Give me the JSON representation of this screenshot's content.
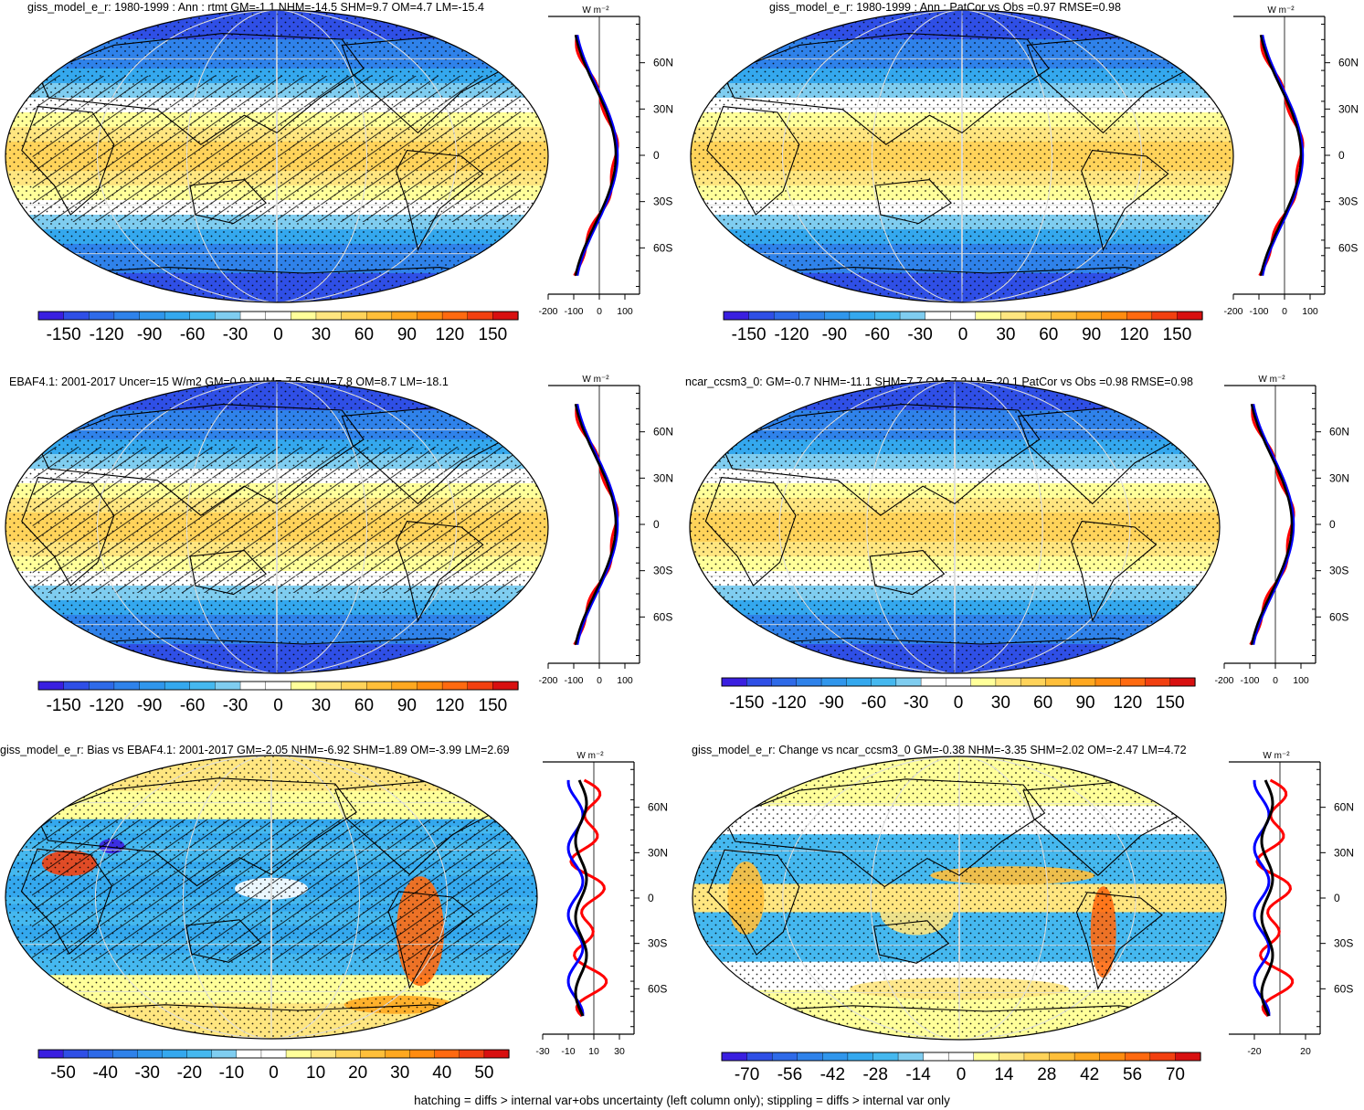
{
  "footnote": "hatching = diffs > internal var+obs uncertainty (left column only); stippling = diffs > internal var only",
  "colors": {
    "neg": [
      "#3a1fe0",
      "#2f4fe6",
      "#2e6ae8",
      "#2f82ea",
      "#3096ec",
      "#34a8ee",
      "#45b8ef",
      "#7fcdf0"
    ],
    "pos": [
      "#ffff9a",
      "#ffe680",
      "#ffd35a",
      "#ffbf3a",
      "#ffa820",
      "#ff8c10",
      "#ff6a10",
      "#f24010",
      "#d81010"
    ],
    "zero": "#ffffff",
    "model_line": "#ff0000",
    "obs_line": "#000000",
    "ref_line": "#0000ff"
  },
  "panels": [
    {
      "title": "giss_model_e_r: 1980-1999 : Ann : rtmt GM=-1.1 NHM=-14.5 SHM=9.7 OM=4.7 LM=-15.4",
      "field": "abs",
      "hatch": true,
      "stipple": true,
      "colorbar_labels": [
        "-150",
        "-120",
        "-90",
        "-60",
        "-30",
        "0",
        "30",
        "60",
        "90",
        "120",
        "150"
      ],
      "unit": "W m⁻²",
      "lat_labels": [
        "60N",
        "30N",
        "0",
        "30S",
        "60S"
      ],
      "x_labels": [
        "-200",
        "-100",
        "0",
        "100"
      ],
      "profile": "abs1"
    },
    {
      "title": "giss_model_e_r: 1980-1999 : Ann : PatCor vs Obs =0.97 RMSE=0.98",
      "field": "abs",
      "hatch": false,
      "stipple": true,
      "colorbar_labels": [
        "-150",
        "-120",
        "-90",
        "-60",
        "-30",
        "0",
        "30",
        "60",
        "90",
        "120",
        "150"
      ],
      "unit": "W m⁻²",
      "lat_labels": [
        "60N",
        "30N",
        "0",
        "30S",
        "60S"
      ],
      "x_labels": [
        "-200",
        "-100",
        "0",
        "100"
      ],
      "profile": "abs2"
    },
    {
      "title": "EBAF4.1: 2001-2017 Uncer=15 W/m2 GM=0.9 NHM=-7.5 SHM=7.8 OM=8.7 LM=-18.1",
      "field": "abs",
      "hatch": true,
      "stipple": true,
      "colorbar_labels": [
        "-150",
        "-120",
        "-90",
        "-60",
        "-30",
        "0",
        "30",
        "60",
        "90",
        "120",
        "150"
      ],
      "unit": "W m⁻²",
      "lat_labels": [
        "60N",
        "30N",
        "0",
        "30S",
        "60S"
      ],
      "x_labels": [
        "-200",
        "-100",
        "0",
        "100"
      ],
      "profile": "abs3"
    },
    {
      "title": "ncar_ccsm3_0: GM=-0.7 NHM=-11.1 SHM=7.7 OM=7.2 LM=-20.1 PatCor vs Obs =0.98 RMSE=0.98",
      "field": "abs",
      "hatch": false,
      "stipple": true,
      "colorbar_labels": [
        "-150",
        "-120",
        "-90",
        "-60",
        "-30",
        "0",
        "30",
        "60",
        "90",
        "120",
        "150"
      ],
      "unit": "W m⁻²",
      "lat_labels": [
        "60N",
        "30N",
        "0",
        "30S",
        "60S"
      ],
      "x_labels": [
        "-200",
        "-100",
        "0",
        "100"
      ],
      "profile": "abs4"
    },
    {
      "title": "giss_model_e_r: Bias vs EBAF4.1: 2001-2017 GM=-2.05 NHM=-6.92 SHM=1.89 OM=-3.99 LM=2.69",
      "field": "bias",
      "hatch": true,
      "stipple": true,
      "colorbar_labels": [
        "-50",
        "-40",
        "-30",
        "-20",
        "-10",
        "0",
        "10",
        "20",
        "30",
        "40",
        "50"
      ],
      "unit": "W m⁻²",
      "lat_labels": [
        "60N",
        "30N",
        "0",
        "30S",
        "60S"
      ],
      "x_labels": [
        "-30",
        "-10",
        "10",
        "30"
      ],
      "profile": "bias"
    },
    {
      "title": "giss_model_e_r: Change vs ncar_ccsm3_0 GM=-0.38 NHM=-3.35 SHM=2.02 OM=-2.47 LM=4.72",
      "field": "change",
      "hatch": false,
      "stipple": true,
      "colorbar_labels": [
        "-70",
        "-56",
        "-42",
        "-28",
        "-14",
        "0",
        "14",
        "28",
        "42",
        "56",
        "70"
      ],
      "unit": "W m⁻²",
      "lat_labels": [
        "60N",
        "30N",
        "0",
        "30S",
        "60S"
      ],
      "x_labels": [
        "-20",
        "20"
      ],
      "profile": "change"
    }
  ]
}
